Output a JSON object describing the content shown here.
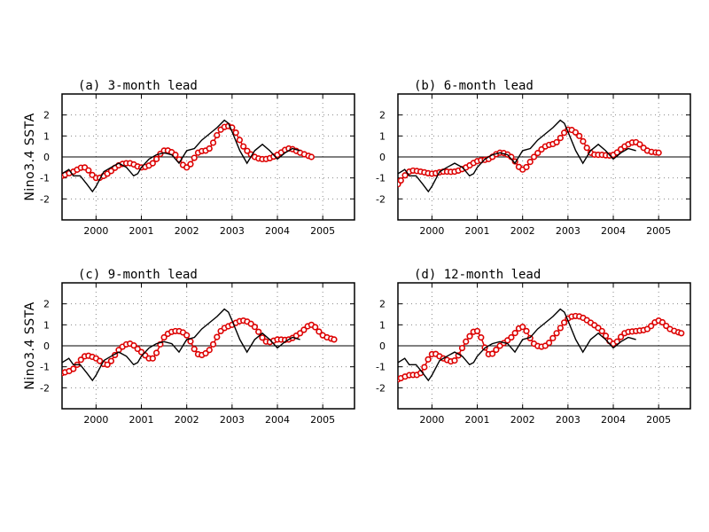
{
  "colors": {
    "observed": "#000000",
    "forecast": "#dd0000",
    "grid": "#888888",
    "zero_line": "#000000"
  },
  "shared_axes": {
    "ylim": [
      -3,
      3
    ],
    "xlim": [
      1999.25,
      2005.7
    ],
    "y_ticks": [
      -2,
      -1,
      0,
      1,
      2
    ],
    "x_ticks": [
      2000,
      2001,
      2002,
      2003,
      2004,
      2005
    ],
    "y_tick_labels": [
      "-2",
      "-1",
      "0",
      "1",
      "2"
    ],
    "x_tick_labels": [
      "2000",
      "2001",
      "2002",
      "2003",
      "2004",
      "2005"
    ],
    "ylabel": "Nino3.4  SSTA",
    "grid": "dotted"
  },
  "observed_series": {
    "type": "line",
    "x": [
      1999.25,
      1999.4,
      1999.5,
      1999.65,
      1999.8,
      1999.92,
      2000.0,
      2000.17,
      2000.33,
      2000.5,
      2000.67,
      2000.83,
      2000.92,
      2001.0,
      2001.17,
      2001.33,
      2001.5,
      2001.67,
      2001.83,
      2002.0,
      2002.17,
      2002.33,
      2002.5,
      2002.67,
      2002.83,
      2002.92,
      2003.0,
      2003.17,
      2003.33,
      2003.5,
      2003.67,
      2003.83,
      2004.0,
      2004.17,
      2004.33,
      2004.5
    ],
    "y": [
      -0.8,
      -0.6,
      -0.9,
      -0.9,
      -1.3,
      -1.65,
      -1.4,
      -0.7,
      -0.5,
      -0.3,
      -0.5,
      -0.9,
      -0.8,
      -0.5,
      -0.1,
      0.1,
      0.2,
      0.1,
      -0.3,
      0.3,
      0.4,
      0.8,
      1.1,
      1.4,
      1.75,
      1.6,
      1.2,
      0.3,
      -0.3,
      0.3,
      0.6,
      0.3,
      -0.1,
      0.2,
      0.4,
      0.3
    ]
  },
  "chart_data": [
    {
      "type": "line",
      "title": "(a) 3-month lead",
      "ylabel": "Nino3.4  SSTA",
      "ylim": [
        -3,
        3
      ],
      "series": [
        {
          "x": [
            1999.25,
            1999.5,
            1999.75,
            2000.0,
            2000.25,
            2000.5,
            2000.75,
            2001.0,
            2001.25,
            2001.5,
            2001.75,
            2002.0,
            2002.25,
            2002.5,
            2002.75,
            2003.0,
            2003.25,
            2003.5,
            2003.75,
            2004.0,
            2004.25,
            2004.5,
            2004.75
          ],
          "y": [
            -0.9,
            -0.7,
            -0.5,
            -1.0,
            -0.8,
            -0.4,
            -0.3,
            -0.5,
            -0.3,
            0.3,
            0.1,
            -0.5,
            0.2,
            0.4,
            1.3,
            1.4,
            0.5,
            0.0,
            -0.1,
            0.1,
            0.4,
            0.2,
            0.0
          ]
        },
        {
          "x": [
            1999.25,
            1999.4,
            1999.5,
            1999.65,
            1999.8,
            1999.92,
            2000.0,
            2000.17,
            2000.33,
            2000.5,
            2000.67,
            2000.83,
            2000.92,
            2001.0,
            2001.17,
            2001.33,
            2001.5,
            2001.67,
            2001.83,
            2002.0,
            2002.17,
            2002.33,
            2002.5,
            2002.67,
            2002.83,
            2002.92,
            2003.0,
            2003.17,
            2003.33,
            2003.5,
            2003.67,
            2003.83,
            2004.0,
            2004.17,
            2004.33,
            2004.5
          ],
          "y": [
            -0.8,
            -0.6,
            -0.9,
            -0.9,
            -1.3,
            -1.65,
            -1.4,
            -0.7,
            -0.5,
            -0.3,
            -0.5,
            -0.9,
            -0.8,
            -0.5,
            -0.1,
            0.1,
            0.2,
            0.1,
            -0.3,
            0.3,
            0.4,
            0.8,
            1.1,
            1.4,
            1.75,
            1.6,
            1.2,
            0.3,
            -0.3,
            0.3,
            0.6,
            0.3,
            -0.1,
            0.2,
            0.4,
            0.3
          ]
        }
      ]
    },
    {
      "type": "line",
      "title": "(b) 6-month lead",
      "ylim": [
        -3,
        3
      ],
      "series": [
        {
          "x": [
            1999.25,
            1999.5,
            1999.75,
            2000.0,
            2000.25,
            2000.5,
            2000.75,
            2001.0,
            2001.25,
            2001.5,
            2001.75,
            2002.0,
            2002.25,
            2002.5,
            2002.75,
            2003.0,
            2003.25,
            2003.5,
            2003.75,
            2004.0,
            2004.25,
            2004.5,
            2004.75,
            2005.0
          ],
          "y": [
            -1.3,
            -0.7,
            -0.7,
            -0.8,
            -0.7,
            -0.7,
            -0.5,
            -0.2,
            -0.1,
            0.2,
            0.0,
            -0.6,
            0.0,
            0.5,
            0.7,
            1.3,
            1.0,
            0.2,
            0.1,
            0.1,
            0.5,
            0.7,
            0.3,
            0.2
          ]
        },
        {
          "x": [
            1999.25,
            1999.4,
            1999.5,
            1999.65,
            1999.8,
            1999.92,
            2000.0,
            2000.17,
            2000.33,
            2000.5,
            2000.67,
            2000.83,
            2000.92,
            2001.0,
            2001.17,
            2001.33,
            2001.5,
            2001.67,
            2001.83,
            2002.0,
            2002.17,
            2002.33,
            2002.5,
            2002.67,
            2002.83,
            2002.92,
            2003.0,
            2003.17,
            2003.33,
            2003.5,
            2003.67,
            2003.83,
            2004.0,
            2004.17,
            2004.33,
            2004.5
          ],
          "y": [
            -0.8,
            -0.6,
            -0.9,
            -0.9,
            -1.3,
            -1.65,
            -1.4,
            -0.7,
            -0.5,
            -0.3,
            -0.5,
            -0.9,
            -0.8,
            -0.5,
            -0.1,
            0.1,
            0.2,
            0.1,
            -0.3,
            0.3,
            0.4,
            0.8,
            1.1,
            1.4,
            1.75,
            1.6,
            1.2,
            0.3,
            -0.3,
            0.3,
            0.6,
            0.3,
            -0.1,
            0.2,
            0.4,
            0.3
          ]
        }
      ]
    },
    {
      "type": "line",
      "title": "(c) 9-month lead",
      "ylabel": "Nino3.4  SSTA",
      "ylim": [
        -3,
        3
      ],
      "series": [
        {
          "x": [
            1999.25,
            1999.5,
            1999.75,
            2000.0,
            2000.25,
            2000.5,
            2000.75,
            2001.0,
            2001.25,
            2001.5,
            2001.75,
            2002.0,
            2002.25,
            2002.5,
            2002.75,
            2003.0,
            2003.25,
            2003.5,
            2003.75,
            2004.0,
            2004.25,
            2004.5,
            2004.75,
            2005.0,
            2005.25
          ],
          "y": [
            -1.3,
            -1.1,
            -0.5,
            -0.6,
            -0.9,
            -0.2,
            0.1,
            -0.3,
            -0.6,
            0.4,
            0.7,
            0.5,
            -0.4,
            -0.2,
            0.7,
            1.0,
            1.2,
            0.9,
            0.2,
            0.3,
            0.3,
            0.6,
            1.0,
            0.5,
            0.3
          ]
        },
        {
          "x": [
            1999.25,
            1999.4,
            1999.5,
            1999.65,
            1999.8,
            1999.92,
            2000.0,
            2000.17,
            2000.33,
            2000.5,
            2000.67,
            2000.83,
            2000.92,
            2001.0,
            2001.17,
            2001.33,
            2001.5,
            2001.67,
            2001.83,
            2002.0,
            2002.17,
            2002.33,
            2002.5,
            2002.67,
            2002.83,
            2002.92,
            2003.0,
            2003.17,
            2003.33,
            2003.5,
            2003.67,
            2003.83,
            2004.0,
            2004.17,
            2004.33,
            2004.5
          ],
          "y": [
            -0.8,
            -0.6,
            -0.9,
            -0.9,
            -1.3,
            -1.65,
            -1.4,
            -0.7,
            -0.5,
            -0.3,
            -0.5,
            -0.9,
            -0.8,
            -0.5,
            -0.1,
            0.1,
            0.2,
            0.1,
            -0.3,
            0.3,
            0.4,
            0.8,
            1.1,
            1.4,
            1.75,
            1.6,
            1.2,
            0.3,
            -0.3,
            0.3,
            0.6,
            0.3,
            -0.1,
            0.2,
            0.4,
            0.3
          ]
        }
      ]
    },
    {
      "type": "line",
      "title": "(d) 12-month lead",
      "ylim": [
        -3,
        3
      ],
      "series": [
        {
          "x": [
            1999.25,
            1999.5,
            1999.75,
            2000.0,
            2000.25,
            2000.5,
            2000.75,
            2001.0,
            2001.25,
            2001.5,
            2001.75,
            2002.0,
            2002.25,
            2002.5,
            2002.75,
            2003.0,
            2003.25,
            2003.5,
            2003.75,
            2004.0,
            2004.25,
            2004.5,
            2004.75,
            2005.0,
            2005.25,
            2005.5
          ],
          "y": [
            -1.6,
            -1.4,
            -1.3,
            -0.4,
            -0.6,
            -0.7,
            0.2,
            0.7,
            -0.4,
            0.0,
            0.4,
            0.9,
            0.1,
            0.0,
            0.6,
            1.3,
            1.4,
            1.1,
            0.7,
            0.1,
            0.6,
            0.7,
            0.8,
            1.2,
            0.8,
            0.6
          ]
        },
        {
          "x": [
            1999.25,
            1999.4,
            1999.5,
            1999.65,
            1999.8,
            1999.92,
            2000.0,
            2000.17,
            2000.33,
            2000.5,
            2000.67,
            2000.83,
            2000.92,
            2001.0,
            2001.17,
            2001.33,
            2001.5,
            2001.67,
            2001.83,
            2002.0,
            2002.17,
            2002.33,
            2002.5,
            2002.67,
            2002.83,
            2002.92,
            2003.0,
            2003.17,
            2003.33,
            2003.5,
            2003.67,
            2003.83,
            2004.0,
            2004.17,
            2004.33,
            2004.5
          ],
          "y": [
            -0.8,
            -0.6,
            -0.9,
            -0.9,
            -1.3,
            -1.65,
            -1.4,
            -0.7,
            -0.5,
            -0.3,
            -0.5,
            -0.9,
            -0.8,
            -0.5,
            -0.1,
            0.1,
            0.2,
            0.1,
            -0.3,
            0.3,
            0.4,
            0.8,
            1.1,
            1.4,
            1.75,
            1.6,
            1.2,
            0.3,
            -0.3,
            0.3,
            0.6,
            0.3,
            -0.1,
            0.2,
            0.4,
            0.3
          ]
        }
      ]
    }
  ]
}
